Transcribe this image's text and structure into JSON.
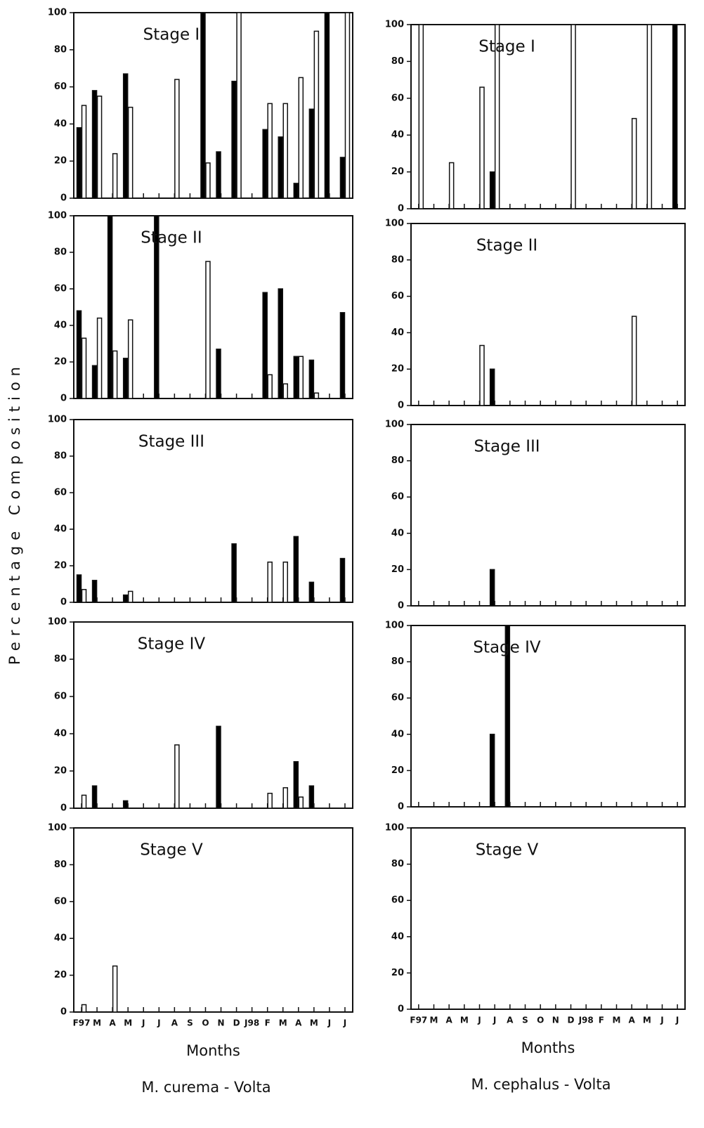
{
  "y_label": "Percentage Composition",
  "chart_data": [
    {
      "type": "bar",
      "title": "Stage I",
      "ylim": [
        0,
        100
      ],
      "yticks": [
        0,
        20,
        40,
        60,
        80,
        100
      ],
      "series": [
        {
          "color": "#000000",
          "values": [
            38,
            58,
            null,
            67,
            null,
            null,
            null,
            null,
            100,
            25,
            63,
            null,
            37,
            33,
            8,
            48,
            100,
            22
          ]
        },
        {
          "color": "#ffffff",
          "values": [
            50,
            55,
            24,
            49,
            null,
            null,
            64,
            null,
            19,
            null,
            100,
            null,
            51,
            51,
            65,
            90,
            null,
            100
          ]
        }
      ]
    },
    {
      "type": "bar",
      "title": "Stage II",
      "ylim": [
        0,
        100
      ],
      "yticks": [
        0,
        20,
        40,
        60,
        80,
        100
      ],
      "series": [
        {
          "color": "#000000",
          "values": [
            48,
            18,
            100,
            22,
            null,
            100,
            null,
            null,
            null,
            27,
            null,
            null,
            58,
            60,
            23,
            21,
            null,
            47
          ]
        },
        {
          "color": "#ffffff",
          "values": [
            33,
            44,
            26,
            43,
            null,
            null,
            null,
            null,
            75,
            null,
            null,
            null,
            13,
            8,
            23,
            3,
            null,
            null
          ]
        }
      ]
    },
    {
      "type": "bar",
      "title": "Stage III",
      "ylim": [
        0,
        100
      ],
      "yticks": [
        0,
        20,
        40,
        60,
        80,
        100
      ],
      "series": [
        {
          "color": "#000000",
          "values": [
            15,
            12,
            null,
            4,
            null,
            null,
            null,
            null,
            null,
            null,
            32,
            null,
            null,
            null,
            36,
            11,
            null,
            24
          ]
        },
        {
          "color": "#ffffff",
          "values": [
            7,
            null,
            null,
            6,
            null,
            null,
            null,
            null,
            null,
            null,
            null,
            null,
            22,
            22,
            null,
            null,
            null,
            null
          ]
        }
      ]
    },
    {
      "type": "bar",
      "title": "Stage IV",
      "ylim": [
        0,
        100
      ],
      "yticks": [
        0,
        20,
        40,
        60,
        80,
        100
      ],
      "series": [
        {
          "color": "#000000",
          "values": [
            null,
            12,
            null,
            4,
            null,
            null,
            null,
            null,
            null,
            44,
            null,
            null,
            null,
            null,
            25,
            12,
            null,
            null
          ]
        },
        {
          "color": "#ffffff",
          "values": [
            7,
            null,
            null,
            null,
            null,
            null,
            34,
            null,
            null,
            null,
            null,
            null,
            8,
            11,
            6,
            null,
            null,
            null
          ]
        }
      ]
    },
    {
      "type": "bar",
      "title": "Stage V",
      "ylim": [
        0,
        100
      ],
      "yticks": [
        0,
        20,
        40,
        60,
        80,
        100
      ],
      "categories": [
        "F97",
        "M",
        "A",
        "M",
        "J",
        "J",
        "A",
        "S",
        "O",
        "N",
        "D",
        "J98",
        "F",
        "M",
        "A",
        "M",
        "J",
        "J"
      ],
      "x_label": "Months",
      "caption": "M. curema - Volta",
      "series": [
        {
          "color": "#000000",
          "values": [
            null,
            null,
            null,
            null,
            null,
            null,
            null,
            null,
            null,
            null,
            null,
            null,
            null,
            null,
            null,
            null,
            null,
            null
          ]
        },
        {
          "color": "#ffffff",
          "values": [
            4,
            null,
            25,
            null,
            null,
            null,
            null,
            null,
            null,
            null,
            null,
            null,
            null,
            null,
            null,
            null,
            null,
            null
          ]
        }
      ]
    },
    {
      "type": "bar",
      "title": "Stage I",
      "ylim": [
        0,
        100
      ],
      "yticks": [
        0,
        20,
        40,
        60,
        80,
        100
      ],
      "series": [
        {
          "color": "#000000",
          "values": [
            null,
            null,
            null,
            null,
            null,
            20,
            null,
            null,
            null,
            null,
            null,
            null,
            null,
            null,
            null,
            null,
            null,
            100
          ]
        },
        {
          "color": "#ffffff",
          "values": [
            100,
            null,
            25,
            null,
            66,
            100,
            null,
            null,
            null,
            null,
            100,
            null,
            null,
            null,
            49,
            100,
            null,
            null
          ]
        }
      ]
    },
    {
      "type": "bar",
      "title": "Stage II",
      "ylim": [
        0,
        100
      ],
      "yticks": [
        0,
        20,
        40,
        60,
        80,
        100
      ],
      "series": [
        {
          "color": "#000000",
          "values": [
            null,
            null,
            null,
            null,
            null,
            20,
            null,
            null,
            null,
            null,
            null,
            null,
            null,
            null,
            null,
            null,
            null,
            null
          ]
        },
        {
          "color": "#ffffff",
          "values": [
            null,
            null,
            null,
            null,
            33,
            null,
            null,
            null,
            null,
            null,
            null,
            null,
            null,
            null,
            49,
            null,
            null,
            null
          ]
        }
      ]
    },
    {
      "type": "bar",
      "title": "Stage III",
      "ylim": [
        0,
        100
      ],
      "yticks": [
        0,
        20,
        40,
        60,
        80,
        100
      ],
      "series": [
        {
          "color": "#000000",
          "values": [
            null,
            null,
            null,
            null,
            null,
            20,
            null,
            null,
            null,
            null,
            null,
            null,
            null,
            null,
            null,
            null,
            null,
            null
          ]
        },
        {
          "color": "#ffffff",
          "values": [
            null,
            null,
            null,
            null,
            null,
            null,
            null,
            null,
            null,
            null,
            null,
            null,
            null,
            null,
            null,
            null,
            null,
            null
          ]
        }
      ]
    },
    {
      "type": "bar",
      "title": "Stage IV",
      "ylim": [
        0,
        100
      ],
      "yticks": [
        0,
        20,
        40,
        60,
        80,
        100
      ],
      "series": [
        {
          "color": "#000000",
          "values": [
            null,
            null,
            null,
            null,
            null,
            40,
            100,
            null,
            null,
            null,
            null,
            null,
            null,
            null,
            null,
            null,
            null,
            null
          ]
        },
        {
          "color": "#ffffff",
          "values": [
            null,
            null,
            null,
            null,
            null,
            null,
            null,
            null,
            null,
            null,
            null,
            null,
            null,
            null,
            null,
            null,
            null,
            null
          ]
        }
      ]
    },
    {
      "type": "bar",
      "title": "Stage V",
      "ylim": [
        0,
        100
      ],
      "yticks": [
        0,
        20,
        40,
        60,
        80,
        100
      ],
      "categories": [
        "F97",
        "M",
        "A",
        "M",
        "J",
        "J",
        "A",
        "S",
        "O",
        "N",
        "D",
        "J98",
        "F",
        "M",
        "A",
        "M",
        "J",
        "J"
      ],
      "x_label": "Months",
      "caption": "M. cephalus - Volta",
      "series": [
        {
          "color": "#000000",
          "values": [
            null,
            null,
            null,
            null,
            null,
            null,
            null,
            null,
            null,
            null,
            null,
            null,
            null,
            null,
            null,
            null,
            null,
            null
          ]
        },
        {
          "color": "#ffffff",
          "values": [
            null,
            null,
            null,
            null,
            null,
            null,
            null,
            null,
            null,
            null,
            null,
            null,
            null,
            null,
            null,
            null,
            null,
            null
          ]
        }
      ]
    }
  ]
}
